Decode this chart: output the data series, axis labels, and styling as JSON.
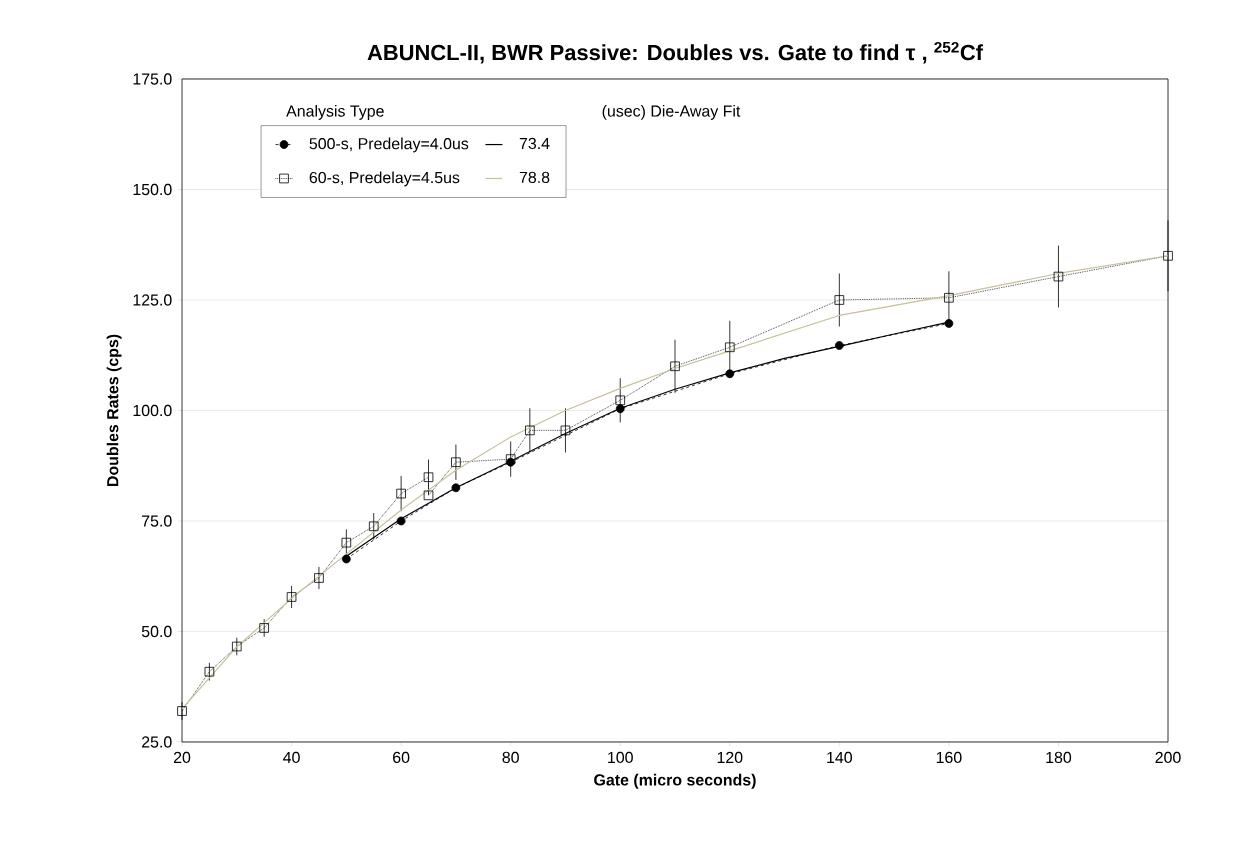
{
  "chart_data": {
    "type": "line",
    "title": "ABUNCL-II, BWR Passive:  Doubles vs. Gate to find τ , $^{252}$Cf",
    "xlabel": "Gate  (micro seconds)",
    "ylabel": "Doubles Rates (cps)",
    "legend_title": "Analysis Type",
    "annotations": [
      "(usec) Die-Away Fit"
    ],
    "xlim": [
      20,
      200
    ],
    "xticks": [
      20,
      40,
      60,
      80,
      100,
      120,
      140,
      160,
      180,
      200
    ],
    "ylim": [
      25,
      175
    ],
    "yticks": [
      {
        "value": 25,
        "label": "25.0"
      },
      {
        "value": 50,
        "label": "50.0"
      },
      {
        "value": 75,
        "label": "75.0"
      },
      {
        "value": 100,
        "label": "100.0"
      },
      {
        "value": 125,
        "label": "125.0"
      },
      {
        "value": 150,
        "label": "150.0"
      },
      {
        "value": 175,
        "label": "175.0"
      }
    ],
    "grid": "y",
    "legend": "top left",
    "series": [
      {
        "name": "500-s, Predelay=4.0us",
        "color": "#000000",
        "marker": "circle",
        "line_style": "dashed",
        "x": [
          50,
          60,
          70,
          80,
          100,
          120,
          140,
          160
        ],
        "values": [
          66.4,
          75.0,
          82.5,
          88.3,
          100.4,
          108.3,
          114.7,
          119.7
        ]
      },
      {
        "name": "60-s, Predelay=4.5us",
        "color": "#000000",
        "marker": "square",
        "line_style": "dotted",
        "x": [
          20,
          25,
          30,
          35,
          40,
          45,
          50,
          55,
          60,
          65,
          65,
          70,
          80,
          83.5,
          90,
          100,
          110,
          120,
          140,
          160,
          180,
          200
        ],
        "values": [
          32.0,
          40.9,
          46.6,
          50.8,
          57.8,
          62.1,
          70.1,
          73.8,
          81.2,
          84.9,
          80.8,
          88.3,
          89,
          95.5,
          95.5,
          102.3,
          110.0,
          114.3,
          125.0,
          125.5,
          130.3,
          135.0
        ],
        "errors": [
          2,
          2,
          2,
          2,
          2.5,
          2.5,
          3,
          3,
          4,
          4,
          null,
          4,
          4,
          5,
          5,
          5,
          6,
          6,
          6,
          6,
          7,
          8
        ]
      },
      {
        "name": "73.4",
        "color": "#000000",
        "marker": "none",
        "line_style": "solid",
        "x": [
          50,
          60,
          70,
          80,
          90,
          100,
          110,
          120,
          130,
          140,
          150,
          160
        ],
        "values": [
          67,
          75.5,
          82.5,
          88.5,
          94.8,
          100.5,
          104.8,
          108.5,
          111.8,
          114.5,
          117.3,
          120
        ]
      },
      {
        "name": "78.8",
        "color": "#c8bf9b",
        "marker": "none",
        "line_style": "solid",
        "x": [
          20,
          30,
          40,
          50,
          60,
          70,
          80,
          90,
          100,
          110,
          120,
          140,
          160,
          180,
          200
        ],
        "values": [
          32.5,
          46.5,
          57.5,
          67.5,
          77.5,
          86.5,
          94,
          100,
          105,
          109.5,
          113.5,
          121.5,
          126,
          131,
          135
        ]
      }
    ]
  }
}
